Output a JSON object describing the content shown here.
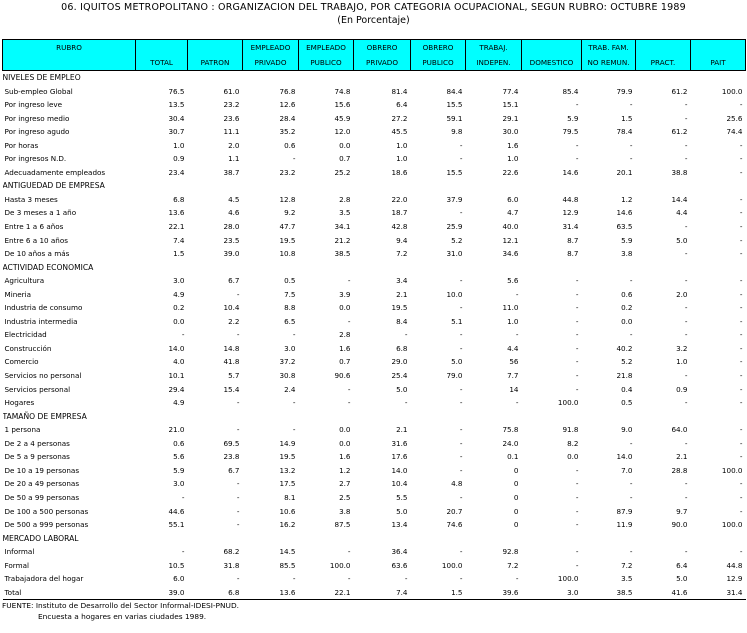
{
  "header": {
    "title": "06. IQUITOS METROPOLITANO : ORGANIZACION DEL TRABAJO, POR CATEGORIA OCUPACIONAL, SEGUN RUBRO: OCTUBRE 1989",
    "subtitle": "(En Porcentaje)"
  },
  "table": {
    "columns": [
      [
        "RUBRO",
        ""
      ],
      [
        "",
        "TOTAL"
      ],
      [
        "",
        "PATRON"
      ],
      [
        "EMPLEADO",
        "PRIVADO"
      ],
      [
        "EMPLEADO",
        "PUBLICO"
      ],
      [
        "OBRERO",
        "PRIVADO"
      ],
      [
        "OBRERO",
        "PUBLICO"
      ],
      [
        "TRABAJ.",
        "INDEPEN."
      ],
      [
        "",
        "DOMESTICO"
      ],
      [
        "TRAB. FAM.",
        "NO REMUN."
      ],
      [
        "",
        "PRACT."
      ],
      [
        "",
        "PAIT"
      ]
    ],
    "sections": [
      {
        "title": "NIVELES DE EMPLEO",
        "rows": [
          [
            "Sub-empleo Global",
            "76.5",
            "61.0",
            "76.8",
            "74.8",
            "81.4",
            "84.4",
            "77.4",
            "85.4",
            "79.9",
            "61.2",
            "100.0"
          ],
          [
            "Por ingreso leve",
            "13.5",
            "23.2",
            "12.6",
            "15.6",
            "6.4",
            "15.5",
            "15.1",
            "-",
            "-",
            "-",
            "-"
          ],
          [
            "Por ingreso medio",
            "30.4",
            "23.6",
            "28.4",
            "45.9",
            "27.2",
            "59.1",
            "29.1",
            "5.9",
            "1.5",
            "-",
            "25.6"
          ],
          [
            "Por ingreso agudo",
            "30.7",
            "11.1",
            "35.2",
            "12.0",
            "45.5",
            "9.8",
            "30.0",
            "79.5",
            "78.4",
            "61.2",
            "74.4"
          ],
          [
            "Por horas",
            "1.0",
            "2.0",
            "0.6",
            "0.0",
            "1.0",
            "-",
            "1.6",
            "-",
            "-",
            "-",
            "-"
          ],
          [
            "Por ingresos N.D.",
            "0.9",
            "1.1",
            "-",
            "0.7",
            "1.0",
            "-",
            "1.0",
            "-",
            "-",
            "-",
            "-"
          ],
          [
            "Adecuadamente empleados",
            "23.4",
            "38.7",
            "23.2",
            "25.2",
            "18.6",
            "15.5",
            "22.6",
            "14.6",
            "20.1",
            "38.8",
            "-"
          ]
        ]
      },
      {
        "title": "ANTIGUEDAD DE EMPRESA",
        "rows": [
          [
            "Hasta 3 meses",
            "6.8",
            "4.5",
            "12.8",
            "2.8",
            "22.0",
            "37.9",
            "6.0",
            "44.8",
            "1.2",
            "14.4",
            "-"
          ],
          [
            "De 3 meses a 1 año",
            "13.6",
            "4.6",
            "9.2",
            "3.5",
            "18.7",
            "-",
            "4.7",
            "12.9",
            "14.6",
            "4.4",
            "-"
          ],
          [
            "Entre 1 a 6 años",
            "22.1",
            "28.0",
            "47.7",
            "34.1",
            "42.8",
            "25.9",
            "40.0",
            "31.4",
            "63.5",
            "-",
            "-"
          ],
          [
            "Entre 6 a 10 años",
            "7.4",
            "23.5",
            "19.5",
            "21.2",
            "9.4",
            "5.2",
            "12.1",
            "8.7",
            "5.9",
            "5.0",
            "-"
          ],
          [
            "De 10 años a más",
            "1.5",
            "39.0",
            "10.8",
            "38.5",
            "7.2",
            "31.0",
            "34.6",
            "8.7",
            "3.8",
            "-",
            "-"
          ]
        ]
      },
      {
        "title": "ACTIVIDAD ECONOMICA",
        "rows": [
          [
            "Agricultura",
            "3.0",
            "6.7",
            "0.5",
            "-",
            "3.4",
            "-",
            "5.6",
            "-",
            "-",
            "-",
            "-"
          ],
          [
            "Mineria",
            "4.9",
            "-",
            "7.5",
            "3.9",
            "2.1",
            "10.0",
            "-",
            "-",
            "0.6",
            "2.0",
            "-"
          ],
          [
            "Industria de consumo",
            "0.2",
            "10.4",
            "8.8",
            "0.0",
            "19.5",
            "-",
            "11.0",
            "-",
            "0.2",
            "-",
            "-"
          ],
          [
            "Industria intermedia",
            "0.0",
            "2.2",
            "6.5",
            "-",
            "8.4",
            "5.1",
            "1.0",
            "-",
            "0.0",
            "-",
            "-"
          ],
          [
            "Electricidad",
            "-",
            "-",
            "-",
            "2.8",
            "-",
            "-",
            "-",
            "-",
            "-",
            "-",
            "-"
          ],
          [
            "Construcción",
            "14.0",
            "14.8",
            "3.0",
            "1.6",
            "6.8",
            "-",
            "4.4",
            "-",
            "40.2",
            "3.2",
            "-"
          ],
          [
            "Comercio",
            "4.0",
            "41.8",
            "37.2",
            "0.7",
            "29.0",
            "5.0",
            "56",
            "-",
            "5.2",
            "1.0",
            "-"
          ],
          [
            "Servicios no personal",
            "10.1",
            "5.7",
            "30.8",
            "90.6",
            "25.4",
            "79.0",
            "7.7",
            "-",
            "21.8",
            "-",
            "-"
          ],
          [
            "Servicios personal",
            "29.4",
            "15.4",
            "2.4",
            "-",
            "5.0",
            "-",
            "14",
            "-",
            "0.4",
            "0.9",
            "-"
          ],
          [
            "Hogares",
            "4.9",
            "-",
            "-",
            "-",
            "-",
            "-",
            "-",
            "100.0",
            "0.5",
            "-",
            "-"
          ]
        ]
      },
      {
        "title": "TAMAÑO DE EMPRESA",
        "rows": [
          [
            "1 persona",
            "21.0",
            "-",
            "-",
            "0.0",
            "2.1",
            "-",
            "75.8",
            "91.8",
            "9.0",
            "64.0",
            "-"
          ],
          [
            "De 2 a 4 personas",
            "0.6",
            "69.5",
            "14.9",
            "0.0",
            "31.6",
            "-",
            "24.0",
            "8.2",
            "-",
            "-",
            "-"
          ],
          [
            "De 5 a 9 personas",
            "5.6",
            "23.8",
            "19.5",
            "1.6",
            "17.6",
            "-",
            "0.1",
            "0.0",
            "14.0",
            "2.1",
            "-"
          ],
          [
            "De 10 a 19 personas",
            "5.9",
            "6.7",
            "13.2",
            "1.2",
            "14.0",
            "-",
            "0",
            "-",
            "7.0",
            "28.8",
            "100.0"
          ],
          [
            "De 20 a 49 personas",
            "3.0",
            "-",
            "17.5",
            "2.7",
            "10.4",
            "4.8",
            "0",
            "-",
            "-",
            "-",
            "-"
          ],
          [
            "De 50 a 99 personas",
            "-",
            "-",
            "8.1",
            "2.5",
            "5.5",
            "-",
            "0",
            "-",
            "-",
            "-",
            "-"
          ],
          [
            "De 100 a 500 personas",
            "44.6",
            "-",
            "10.6",
            "3.8",
            "5.0",
            "20.7",
            "0",
            "-",
            "87.9",
            "9.7",
            "-"
          ],
          [
            "De 500 a 999 personas",
            "55.1",
            "-",
            "16.2",
            "87.5",
            "13.4",
            "74.6",
            "0",
            "-",
            "11.9",
            "90.0",
            "100.0"
          ]
        ]
      },
      {
        "title": "MERCADO LABORAL",
        "rows": [
          [
            "Informal",
            "-",
            "68.2",
            "14.5",
            "-",
            "36.4",
            "-",
            "92.8",
            "-",
            "-",
            "-",
            "-"
          ],
          [
            "Formal",
            "10.5",
            "31.8",
            "85.5",
            "100.0",
            "63.6",
            "100.0",
            "7.2",
            "-",
            "7.2",
            "6.4",
            "44.8"
          ],
          [
            "Trabajadora del hogar",
            "6.0",
            "-",
            "-",
            "-",
            "-",
            "-",
            "-",
            "100.0",
            "3.5",
            "5.0",
            "12.9"
          ],
          [
            "Total",
            "39.0",
            "6.8",
            "13.6",
            "22.1",
            "7.4",
            "1.5",
            "39.6",
            "3.0",
            "38.5",
            "41.6",
            "31.4"
          ]
        ]
      }
    ]
  },
  "footer": {
    "source": "FUENTE: Instituto de Desarrollo del Sector Informal-IDESI-PNUD.",
    "note": "Encuesta a hogares en varias ciudades 1989."
  }
}
